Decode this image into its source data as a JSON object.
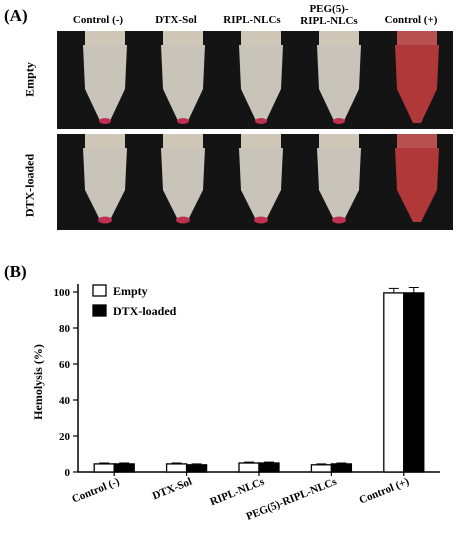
{
  "panel_a": {
    "label": "(A)",
    "columns": [
      "Control (-)",
      "DTX-Sol",
      "RIPL-NLCs",
      "PEG(5)-\nRIPL-NLCs",
      "Control (+)"
    ],
    "rows": [
      "Empty",
      "DTX-loaded"
    ]
  },
  "panel_b": {
    "label": "(B)"
  },
  "chart_data": {
    "type": "bar",
    "categories": [
      "Control (-)",
      "DTX-Sol",
      "RIPL-NLCs",
      "PEG(5)-RIPL-NLCs",
      "Control (+)"
    ],
    "series": [
      {
        "name": "Empty",
        "values": [
          4.5,
          4.5,
          5.0,
          4.0,
          99.5
        ],
        "errors": [
          0.5,
          0.5,
          0.5,
          0.5,
          2.5
        ],
        "color": "#ffffff"
      },
      {
        "name": "DTX-loaded",
        "values": [
          4.5,
          4.0,
          5.0,
          4.5,
          99.5
        ],
        "errors": [
          0.5,
          0.5,
          0.5,
          0.5,
          3.0
        ],
        "color": "#000000"
      }
    ],
    "ylabel": "Hemolysis (%)",
    "xlabel": "",
    "ylim": [
      0,
      100
    ],
    "yticks": [
      0,
      20,
      40,
      60,
      80,
      100
    ],
    "legend_position": "top-left"
  },
  "colors": {
    "photo_bg": "#141414",
    "tube_body": "#d8d4c8",
    "tube_cap": "#cfc8b8",
    "rbc_pellet": "#c03050",
    "lysed": "#b83a3a"
  }
}
